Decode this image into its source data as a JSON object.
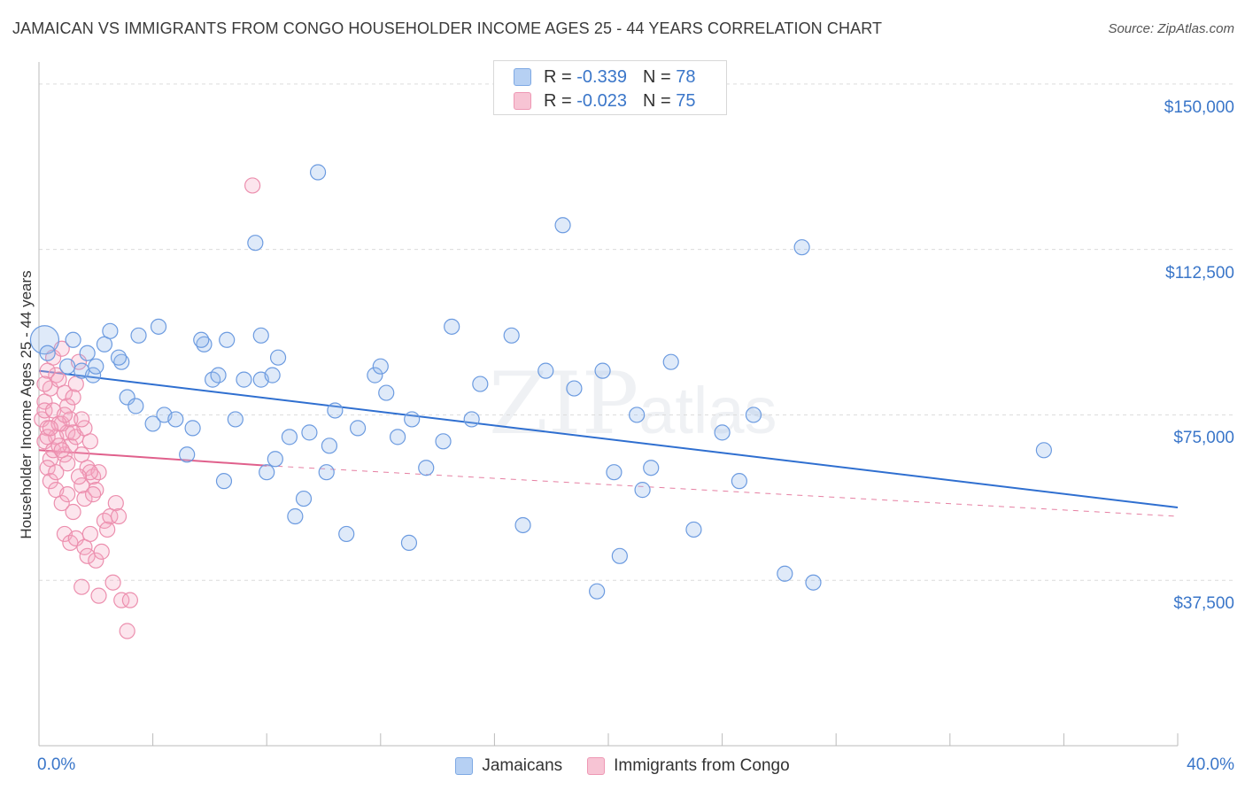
{
  "title": "JAMAICAN VS IMMIGRANTS FROM CONGO HOUSEHOLDER INCOME AGES 25 - 44 YEARS CORRELATION CHART",
  "source": "Source: ZipAtlas.com",
  "watermark": {
    "zip": "ZIP",
    "atlas": "atlas"
  },
  "legend": {
    "r_label": "R =",
    "n_label": "N =",
    "rows": [
      {
        "r": "-0.339",
        "n": "78"
      },
      {
        "r": "-0.023",
        "n": "75"
      }
    ]
  },
  "chart_data": {
    "type": "scatter",
    "xlabel": "",
    "ylabel": "Householder Income Ages 25 - 44 years",
    "x_tick_labels": [
      "0.0%",
      "40.0%"
    ],
    "y_tick_labels": [
      "$150,000",
      "$112,500",
      "$75,000",
      "$37,500"
    ],
    "y_ticks": [
      150000,
      112500,
      75000,
      37500
    ],
    "xlim": [
      0,
      40
    ],
    "ylim": [
      0,
      155000
    ],
    "grid": true,
    "legend_position": "top-center",
    "colors": {
      "Jamaicans": "#6c9be0",
      "Immigrants from Congo": "#ec8fae",
      "Jamaicans_line": "#2f6fd0",
      "Immigrants from Congo_line": "#e0608c"
    },
    "series": [
      {
        "name": "Jamaicans",
        "points": [
          [
            0.2,
            92000
          ],
          [
            0.3,
            89000
          ],
          [
            1.0,
            86000
          ],
          [
            1.5,
            85000
          ],
          [
            1.9,
            84000
          ],
          [
            1.7,
            89000
          ],
          [
            2.3,
            91000
          ],
          [
            2.5,
            94000
          ],
          [
            2.9,
            87000
          ],
          [
            2.8,
            88000
          ],
          [
            3.5,
            93000
          ],
          [
            4.2,
            95000
          ],
          [
            3.1,
            79000
          ],
          [
            3.4,
            77000
          ],
          [
            4.0,
            73000
          ],
          [
            4.4,
            75000
          ],
          [
            4.8,
            74000
          ],
          [
            5.2,
            66000
          ],
          [
            5.4,
            72000
          ],
          [
            5.8,
            91000
          ],
          [
            5.7,
            92000
          ],
          [
            6.1,
            83000
          ],
          [
            6.3,
            84000
          ],
          [
            6.6,
            92000
          ],
          [
            6.9,
            74000
          ],
          [
            7.2,
            83000
          ],
          [
            6.5,
            60000
          ],
          [
            7.8,
            83000
          ],
          [
            8.0,
            62000
          ],
          [
            8.3,
            65000
          ],
          [
            8.2,
            84000
          ],
          [
            7.6,
            114000
          ],
          [
            7.8,
            93000
          ],
          [
            8.4,
            88000
          ],
          [
            8.8,
            70000
          ],
          [
            9.5,
            71000
          ],
          [
            10.1,
            62000
          ],
          [
            9.3,
            56000
          ],
          [
            9.0,
            52000
          ],
          [
            9.8,
            130000
          ],
          [
            10.2,
            68000
          ],
          [
            10.4,
            76000
          ],
          [
            11.2,
            72000
          ],
          [
            11.8,
            84000
          ],
          [
            12.0,
            86000
          ],
          [
            12.2,
            80000
          ],
          [
            12.6,
            70000
          ],
          [
            13.1,
            74000
          ],
          [
            13.6,
            63000
          ],
          [
            14.2,
            69000
          ],
          [
            10.8,
            48000
          ],
          [
            13.0,
            46000
          ],
          [
            14.5,
            95000
          ],
          [
            15.5,
            82000
          ],
          [
            16.6,
            93000
          ],
          [
            15.2,
            74000
          ],
          [
            17.0,
            50000
          ],
          [
            17.8,
            85000
          ],
          [
            18.4,
            118000
          ],
          [
            18.8,
            81000
          ],
          [
            19.8,
            85000
          ],
          [
            20.2,
            62000
          ],
          [
            20.4,
            43000
          ],
          [
            19.6,
            35000
          ],
          [
            21.0,
            75000
          ],
          [
            21.5,
            63000
          ],
          [
            21.2,
            58000
          ],
          [
            22.2,
            87000
          ],
          [
            23.0,
            49000
          ],
          [
            24.0,
            71000
          ],
          [
            24.6,
            60000
          ],
          [
            25.1,
            75000
          ],
          [
            26.2,
            39000
          ],
          [
            27.2,
            37000
          ],
          [
            26.8,
            113000
          ],
          [
            35.3,
            67000
          ],
          [
            1.2,
            92000
          ],
          [
            2.0,
            86000
          ]
        ]
      },
      {
        "name": "Immigrants from Congo",
        "points": [
          [
            0.1,
            74000
          ],
          [
            0.2,
            78000
          ],
          [
            0.3,
            72000
          ],
          [
            0.2,
            69000
          ],
          [
            0.4,
            65000
          ],
          [
            0.3,
            63000
          ],
          [
            0.5,
            67000
          ],
          [
            0.6,
            70000
          ],
          [
            0.8,
            73000
          ],
          [
            0.9,
            66000
          ],
          [
            1.0,
            71000
          ],
          [
            1.1,
            74000
          ],
          [
            0.4,
            81000
          ],
          [
            0.6,
            84000
          ],
          [
            0.7,
            83000
          ],
          [
            0.9,
            80000
          ],
          [
            1.0,
            77000
          ],
          [
            1.2,
            79000
          ],
          [
            1.3,
            82000
          ],
          [
            0.5,
            88000
          ],
          [
            0.8,
            90000
          ],
          [
            1.4,
            87000
          ],
          [
            0.2,
            76000
          ],
          [
            0.3,
            85000
          ],
          [
            0.5,
            76000
          ],
          [
            0.7,
            73000
          ],
          [
            1.1,
            68000
          ],
          [
            1.3,
            70000
          ],
          [
            1.5,
            66000
          ],
          [
            1.6,
            72000
          ],
          [
            1.8,
            69000
          ],
          [
            1.7,
            63000
          ],
          [
            1.9,
            61000
          ],
          [
            2.1,
            62000
          ],
          [
            0.4,
            60000
          ],
          [
            0.6,
            58000
          ],
          [
            0.8,
            55000
          ],
          [
            1.0,
            57000
          ],
          [
            1.2,
            53000
          ],
          [
            1.5,
            59000
          ],
          [
            1.8,
            62000
          ],
          [
            1.6,
            56000
          ],
          [
            2.0,
            58000
          ],
          [
            2.3,
            51000
          ],
          [
            2.5,
            52000
          ],
          [
            0.9,
            48000
          ],
          [
            1.1,
            46000
          ],
          [
            1.3,
            47000
          ],
          [
            1.6,
            45000
          ],
          [
            1.7,
            43000
          ],
          [
            2.0,
            42000
          ],
          [
            2.2,
            44000
          ],
          [
            2.4,
            49000
          ],
          [
            2.7,
            55000
          ],
          [
            1.5,
            36000
          ],
          [
            2.1,
            34000
          ],
          [
            2.6,
            37000
          ],
          [
            2.9,
            33000
          ],
          [
            3.2,
            33000
          ],
          [
            3.1,
            26000
          ],
          [
            7.5,
            127000
          ],
          [
            0.3,
            70000
          ],
          [
            0.7,
            68000
          ],
          [
            1.0,
            64000
          ],
          [
            1.4,
            61000
          ],
          [
            0.2,
            82000
          ],
          [
            0.9,
            75000
          ],
          [
            1.2,
            71000
          ],
          [
            1.5,
            74000
          ],
          [
            0.6,
            62000
          ],
          [
            1.8,
            48000
          ],
          [
            2.8,
            52000
          ],
          [
            0.4,
            72000
          ],
          [
            0.8,
            67000
          ],
          [
            1.9,
            57000
          ]
        ]
      }
    ],
    "trendlines": [
      {
        "series": "Jamaicans",
        "x": [
          0,
          40
        ],
        "y": [
          85000,
          54000
        ]
      },
      {
        "series": "Immigrants from Congo",
        "x": [
          0,
          8
        ],
        "y": [
          67000,
          63500
        ],
        "dashed_extension": {
          "x": [
            8,
            40
          ],
          "y": [
            63500,
            52000
          ]
        }
      }
    ]
  },
  "bottom_legend": [
    {
      "label": "Jamaicans"
    },
    {
      "label": "Immigrants from Congo"
    }
  ]
}
